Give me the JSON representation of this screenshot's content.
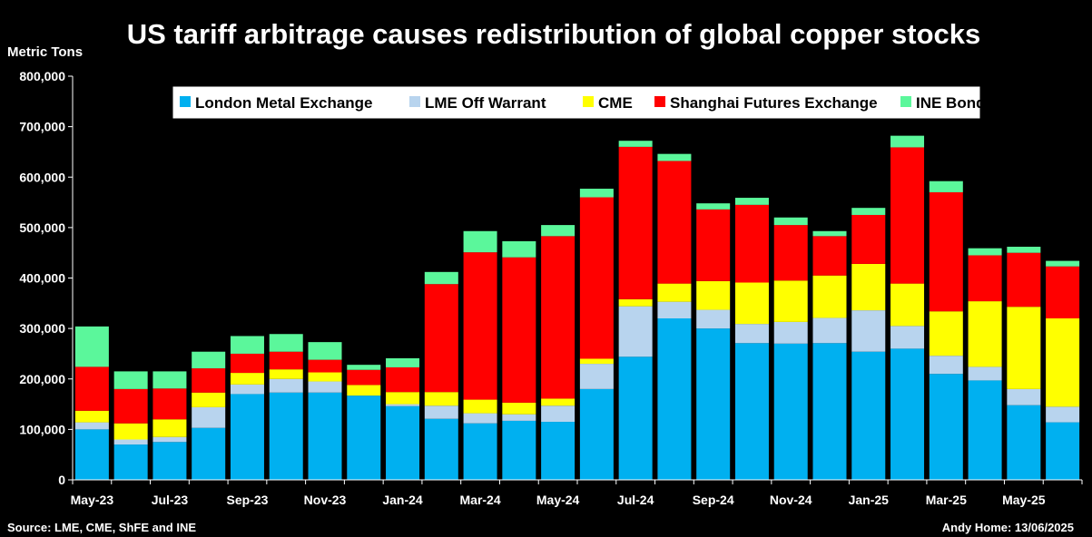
{
  "chart_data": {
    "type": "bar",
    "stacked": true,
    "title": "US tariff arbitrage causes redistribution of global copper stocks",
    "ylabel": "Metric Tons",
    "ylim": [
      0,
      800000
    ],
    "yticks": [
      0,
      100000,
      200000,
      300000,
      400000,
      500000,
      600000,
      700000,
      800000
    ],
    "ytick_labels": [
      "0",
      "100,000",
      "200,000",
      "300,000",
      "400,000",
      "500,000",
      "600,000",
      "700,000",
      "800,000"
    ],
    "categories": [
      "May-23",
      "Jun-23",
      "Jul-23",
      "Aug-23",
      "Sep-23",
      "Oct-23",
      "Nov-23",
      "Dec-23",
      "Jan-24",
      "Feb-24",
      "Mar-24",
      "Apr-24",
      "May-24",
      "Jun-24",
      "Jul-24",
      "Aug-24",
      "Sep-24",
      "Oct-24",
      "Nov-24",
      "Dec-24",
      "Jan-25",
      "Feb-25",
      "Mar-25",
      "Apr-25",
      "May-25",
      "Jun-25"
    ],
    "xtick_labels": [
      "May-23",
      "Jul-23",
      "Sep-23",
      "Nov-23",
      "Jan-24",
      "Mar-24",
      "May-24",
      "Jul-24",
      "Sep-24",
      "Nov-24",
      "Jan-25",
      "Mar-25",
      "May-25"
    ],
    "legend_position": "top",
    "series": [
      {
        "name": "London Metal Exchange",
        "color": "#00B0F0",
        "values": [
          100000,
          70000,
          75000,
          103000,
          170000,
          173000,
          173000,
          167000,
          146000,
          121000,
          112000,
          117000,
          115000,
          180000,
          244000,
          320000,
          300000,
          271000,
          270000,
          271000,
          254000,
          260000,
          210000,
          197000,
          148000,
          114000
        ]
      },
      {
        "name": "LME Off Warrant",
        "color": "#B8D4EE",
        "values": [
          14000,
          10000,
          10000,
          41000,
          19000,
          27000,
          22000,
          0,
          4000,
          26000,
          20000,
          13000,
          32000,
          50000,
          100000,
          33000,
          37000,
          38000,
          43000,
          50000,
          82000,
          45000,
          36000,
          27000,
          32000,
          31000
        ]
      },
      {
        "name": "CME",
        "color": "#FFFF00",
        "values": [
          23000,
          32000,
          35000,
          29000,
          23000,
          19000,
          18000,
          21000,
          24000,
          27000,
          27000,
          23000,
          14000,
          10000,
          14000,
          36000,
          57000,
          82000,
          82000,
          84000,
          92000,
          84000,
          88000,
          130000,
          163000,
          175000
        ]
      },
      {
        "name": "Shanghai Futures Exchange",
        "color": "#FF0000",
        "values": [
          87000,
          68000,
          61000,
          48000,
          38000,
          35000,
          25000,
          30000,
          49000,
          214000,
          292000,
          288000,
          322000,
          320000,
          302000,
          243000,
          142000,
          154000,
          110000,
          78000,
          97000,
          270000,
          236000,
          91000,
          107000,
          103000
        ]
      },
      {
        "name": "INE Bonded",
        "color": "#5BF79B",
        "values": [
          80000,
          35000,
          34000,
          33000,
          35000,
          35000,
          35000,
          10000,
          18000,
          24000,
          42000,
          32000,
          22000,
          17000,
          12000,
          14000,
          12000,
          14000,
          15000,
          10000,
          14000,
          23000,
          22000,
          14000,
          12000,
          11000
        ]
      }
    ]
  },
  "footer": {
    "source": "Source: LME, CME, ShFE and INE",
    "author": "Andy Home: 13/06/2025"
  }
}
